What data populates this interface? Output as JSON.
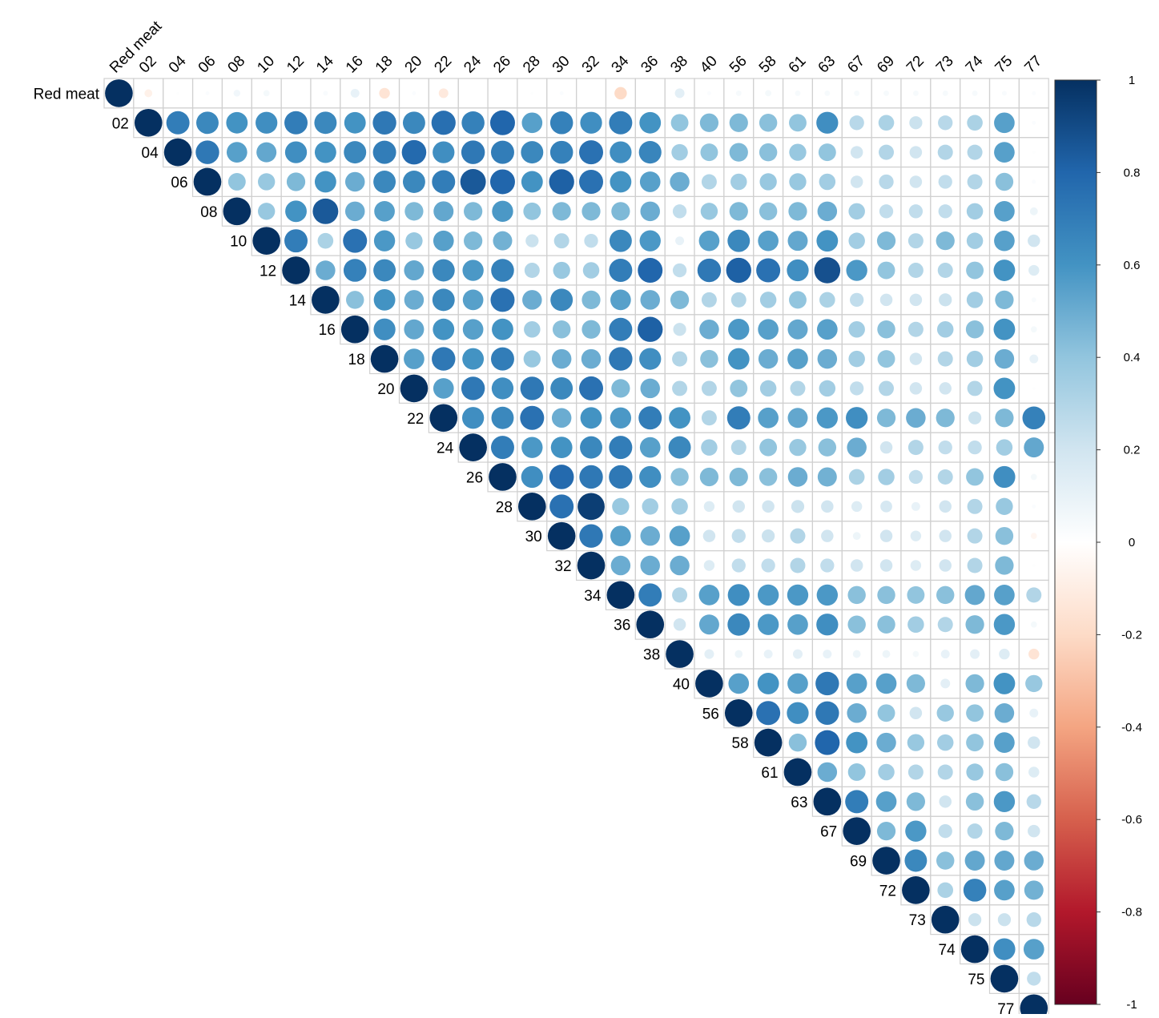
{
  "chart_data": {
    "type": "heatmap",
    "style": "corrplot-upper-circles",
    "variables": [
      "Red meat",
      "02",
      "04",
      "06",
      "08",
      "10",
      "12",
      "14",
      "16",
      "18",
      "20",
      "22",
      "24",
      "26",
      "28",
      "30",
      "32",
      "34",
      "36",
      "38",
      "40",
      "56",
      "58",
      "61",
      "63",
      "67",
      "69",
      "72",
      "73",
      "74",
      "75",
      "77"
    ],
    "matrix_upper_rows": [
      [
        1,
        -0.08,
        0.01,
        0.02,
        0.06,
        0.05,
        0,
        0.03,
        0.1,
        -0.15,
        0.02,
        -0.12,
        0,
        0,
        0.01,
        0.02,
        0,
        -0.2,
        0,
        0.12,
        0.02,
        0.04,
        0.05,
        0.04,
        0.04,
        0.04,
        0.04,
        0.04,
        0.04,
        0.04,
        0.03,
        0.02
      ],
      [
        1,
        0.7,
        0.65,
        0.6,
        0.62,
        0.7,
        0.65,
        0.6,
        0.72,
        0.65,
        0.76,
        0.68,
        0.8,
        0.55,
        0.68,
        0.62,
        0.7,
        0.6,
        0.4,
        0.45,
        0.45,
        0.42,
        0.4,
        0.62,
        0.28,
        0.32,
        0.22,
        0.28,
        0.32,
        0.55,
        0.02
      ],
      [
        1,
        0.72,
        0.55,
        0.52,
        0.62,
        0.6,
        0.65,
        0.7,
        0.78,
        0.62,
        0.72,
        0.7,
        0.65,
        0.68,
        0.75,
        0.62,
        0.66,
        0.35,
        0.4,
        0.45,
        0.42,
        0.38,
        0.4,
        0.2,
        0.3,
        0.2,
        0.3,
        0.3,
        0.55,
        0.01
      ],
      [
        1,
        0.4,
        0.38,
        0.45,
        0.6,
        0.5,
        0.65,
        0.65,
        0.7,
        0.85,
        0.8,
        0.6,
        0.82,
        0.75,
        0.6,
        0.55,
        0.5,
        0.3,
        0.35,
        0.38,
        0.38,
        0.35,
        0.2,
        0.28,
        0.2,
        0.25,
        0.3,
        0.42,
        0.02
      ],
      [
        1,
        0.38,
        0.6,
        0.85,
        0.5,
        0.55,
        0.45,
        0.52,
        0.45,
        0.58,
        0.4,
        0.45,
        0.45,
        0.45,
        0.5,
        0.25,
        0.38,
        0.45,
        0.42,
        0.45,
        0.5,
        0.35,
        0.25,
        0.25,
        0.25,
        0.35,
        0.55,
        0.08
      ],
      [
        1,
        0.7,
        0.32,
        0.75,
        0.58,
        0.38,
        0.55,
        0.45,
        0.48,
        0.22,
        0.3,
        0.25,
        0.65,
        0.58,
        0.1,
        0.55,
        0.65,
        0.55,
        0.52,
        0.6,
        0.35,
        0.45,
        0.3,
        0.45,
        0.35,
        0.55,
        0.2
      ],
      [
        1,
        0.5,
        0.68,
        0.65,
        0.52,
        0.65,
        0.58,
        0.68,
        0.3,
        0.38,
        0.35,
        0.7,
        0.8,
        0.25,
        0.72,
        0.82,
        0.75,
        0.62,
        0.88,
        0.58,
        0.4,
        0.3,
        0.3,
        0.4,
        0.6,
        0.15
      ],
      [
        1,
        0.42,
        0.6,
        0.5,
        0.65,
        0.55,
        0.75,
        0.5,
        0.65,
        0.45,
        0.55,
        0.5,
        0.45,
        0.3,
        0.3,
        0.35,
        0.4,
        0.32,
        0.25,
        0.2,
        0.2,
        0.22,
        0.35,
        0.45,
        0.03
      ],
      [
        1,
        0.62,
        0.52,
        0.6,
        0.55,
        0.6,
        0.35,
        0.42,
        0.45,
        0.7,
        0.82,
        0.22,
        0.5,
        0.58,
        0.55,
        0.52,
        0.55,
        0.35,
        0.42,
        0.3,
        0.35,
        0.42,
        0.6,
        0.05
      ],
      [
        1,
        0.55,
        0.72,
        0.6,
        0.7,
        0.38,
        0.5,
        0.5,
        0.72,
        0.62,
        0.3,
        0.42,
        0.6,
        0.5,
        0.55,
        0.5,
        0.35,
        0.4,
        0.2,
        0.3,
        0.35,
        0.5,
        0.1
      ],
      [
        1,
        0.55,
        0.72,
        0.62,
        0.72,
        0.65,
        0.75,
        0.45,
        0.5,
        0.3,
        0.3,
        0.4,
        0.35,
        0.3,
        0.35,
        0.25,
        0.3,
        0.2,
        0.2,
        0.3,
        0.6,
        0.01
      ],
      [
        1,
        0.62,
        0.65,
        0.75,
        0.5,
        0.6,
        0.58,
        0.7,
        0.6,
        0.3,
        0.7,
        0.55,
        0.52,
        0.58,
        0.62,
        0.45,
        0.5,
        0.45,
        0.22,
        0.45,
        0.68,
        0.35
      ],
      [
        1,
        0.7,
        0.58,
        0.6,
        0.65,
        0.7,
        0.55,
        0.65,
        0.35,
        0.3,
        0.4,
        0.38,
        0.42,
        0.5,
        0.2,
        0.3,
        0.25,
        0.25,
        0.35,
        0.52,
        0.02
      ],
      [
        1,
        0.62,
        0.78,
        0.72,
        0.72,
        0.62,
        0.42,
        0.45,
        0.45,
        0.42,
        0.5,
        0.48,
        0.32,
        0.35,
        0.25,
        0.3,
        0.4,
        0.62,
        0.05
      ],
      [
        1,
        0.75,
        0.95,
        0.38,
        0.35,
        0.35,
        0.15,
        0.2,
        0.2,
        0.22,
        0.2,
        0.15,
        0.18,
        0.1,
        0.2,
        0.3,
        0.38,
        0.02
      ],
      [
        1,
        0.72,
        0.55,
        0.5,
        0.55,
        0.2,
        0.25,
        0.22,
        0.3,
        0.2,
        0.08,
        0.2,
        0.15,
        0.2,
        0.3,
        0.42,
        -0.05
      ],
      [
        1,
        0.5,
        0.5,
        0.5,
        0.15,
        0.25,
        0.25,
        0.3,
        0.25,
        0.2,
        0.2,
        0.15,
        0.2,
        0.3,
        0.45,
        0.01
      ],
      [
        1,
        0.7,
        0.3,
        0.55,
        0.62,
        0.58,
        0.58,
        0.58,
        0.42,
        0.42,
        0.4,
        0.42,
        0.52,
        0.55,
        0.3
      ],
      [
        1,
        0.2,
        0.52,
        0.65,
        0.58,
        0.55,
        0.62,
        0.42,
        0.42,
        0.35,
        0.3,
        0.45,
        0.58,
        0.05
      ],
      [
        1,
        0.12,
        0.08,
        0.1,
        0.12,
        0.1,
        0.08,
        0.08,
        0.05,
        0.1,
        0.12,
        0.15,
        -0.15
      ],
      [
        1,
        0.55,
        0.6,
        0.55,
        0.72,
        0.55,
        0.55,
        0.45,
        0.12,
        0.45,
        0.6,
        0.38
      ],
      [
        1,
        0.75,
        0.62,
        0.72,
        0.5,
        0.4,
        0.2,
        0.38,
        0.4,
        0.5,
        0.1
      ],
      [
        1,
        0.42,
        0.8,
        0.6,
        0.5,
        0.38,
        0.35,
        0.4,
        0.55,
        0.2
      ],
      [
        1,
        0.5,
        0.4,
        0.35,
        0.3,
        0.3,
        0.38,
        0.42,
        0.15
      ],
      [
        1,
        0.7,
        0.55,
        0.45,
        0.2,
        0.42,
        0.58,
        0.28
      ],
      [
        1,
        0.45,
        0.58,
        0.25,
        0.3,
        0.45,
        0.2
      ],
      [
        1,
        0.65,
        0.42,
        0.52,
        0.52,
        0.5
      ],
      [
        1,
        0.32,
        0.68,
        0.55,
        0.48
      ],
      [
        1,
        0.22,
        0.22,
        0.28
      ],
      [
        1,
        0.62,
        0.55
      ],
      [
        1,
        0.25
      ],
      [
        1
      ]
    ],
    "color_scale": {
      "domain": [
        -1,
        1
      ],
      "ticks": [
        "1",
        "0.8",
        "0.6",
        "0.4",
        "0.2",
        "0",
        "-0.2",
        "-0.4",
        "-0.6",
        "-0.8",
        "-1"
      ],
      "stops": [
        "#67001f",
        "#b2182b",
        "#d6604d",
        "#f4a582",
        "#fddbc7",
        "#ffffff",
        "#d1e5f0",
        "#92c5de",
        "#4393c3",
        "#2166ac",
        "#053061"
      ]
    },
    "grid": true,
    "legend_placement": "right"
  }
}
